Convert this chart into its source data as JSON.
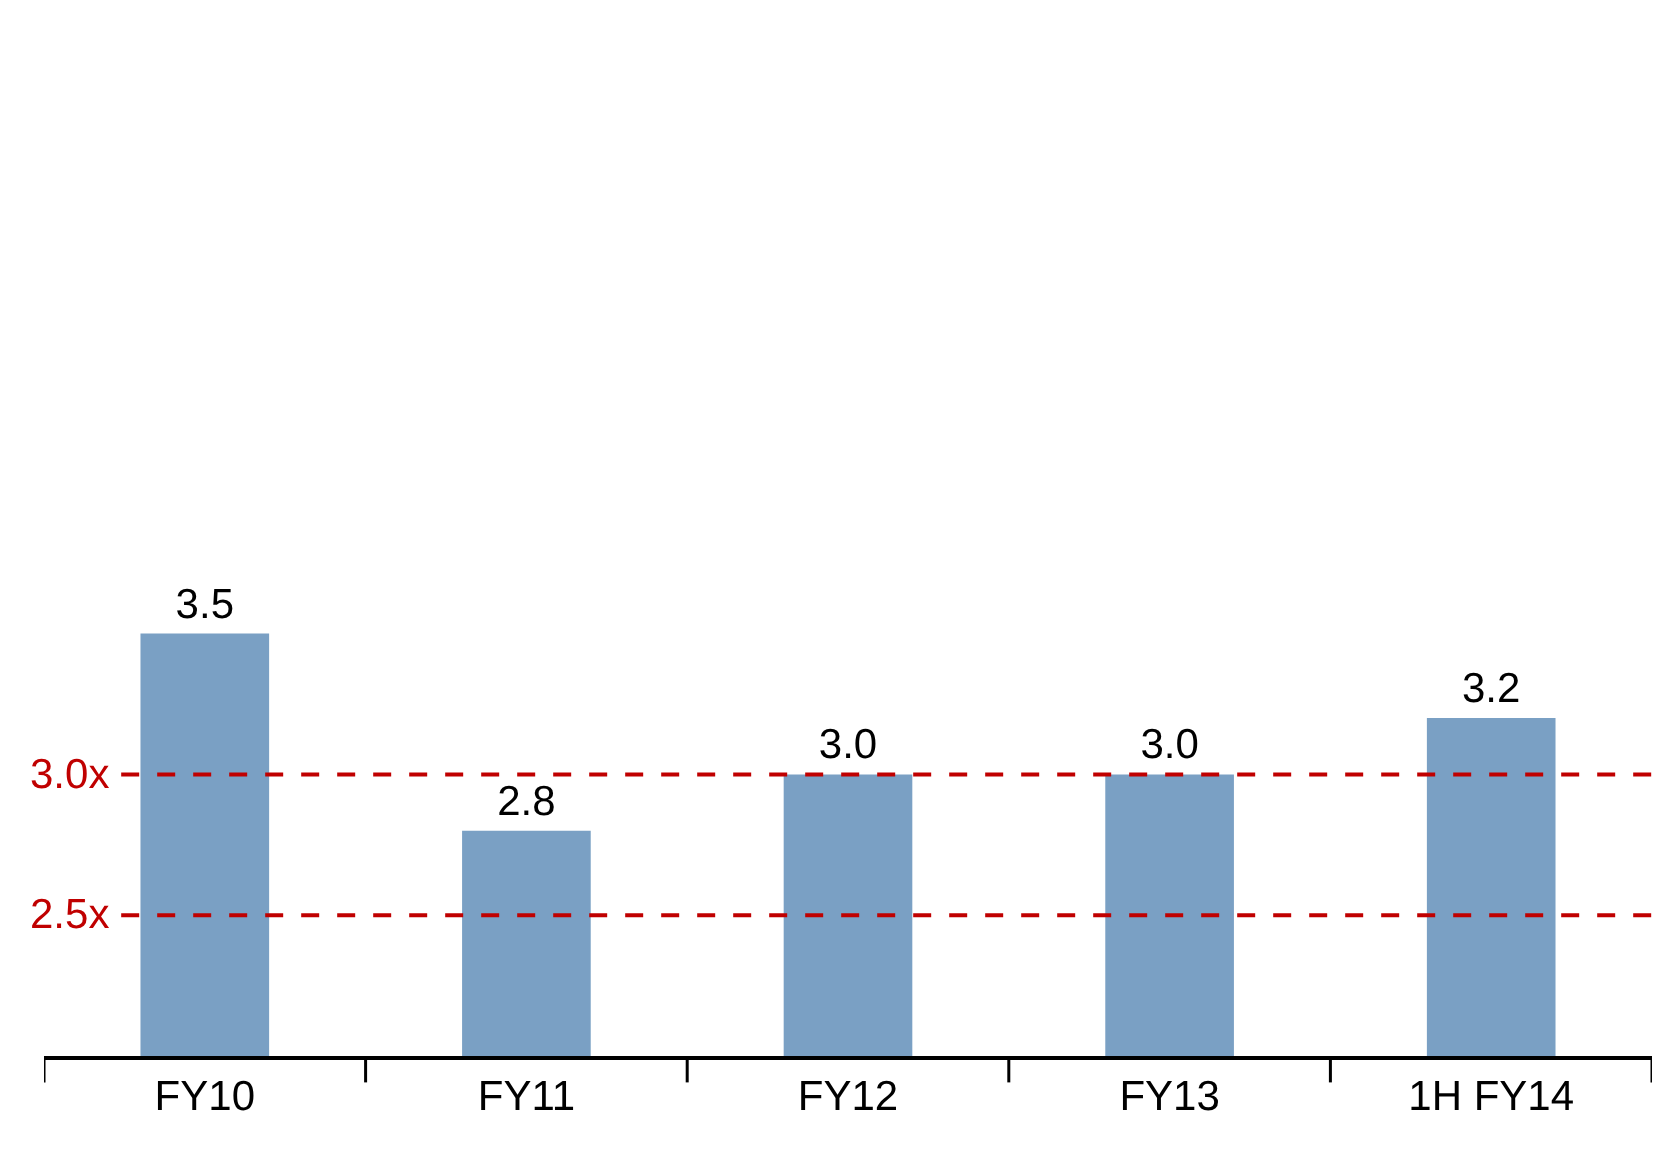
{
  "chart_data": {
    "type": "bar",
    "categories": [
      "FY10",
      "FY11",
      "FY12",
      "FY13",
      "1H FY14"
    ],
    "values": [
      3.5,
      2.8,
      3.0,
      3.0,
      3.2
    ],
    "color": "#7aa0c4",
    "value_labels": [
      "3.5",
      "2.8",
      "3.0",
      "3.0",
      "3.2"
    ],
    "ylim": [
      2.0,
      5.75
    ],
    "tick_labels": "x",
    "grid": false,
    "ref_lines": [
      {
        "axis": "y",
        "value": 3.0,
        "label": "3.0x",
        "color": "#c00000",
        "line_style": "dashed"
      },
      {
        "axis": "y",
        "value": 2.5,
        "label": "2.5x",
        "color": "#c00000",
        "line_style": "dashed"
      }
    ]
  }
}
